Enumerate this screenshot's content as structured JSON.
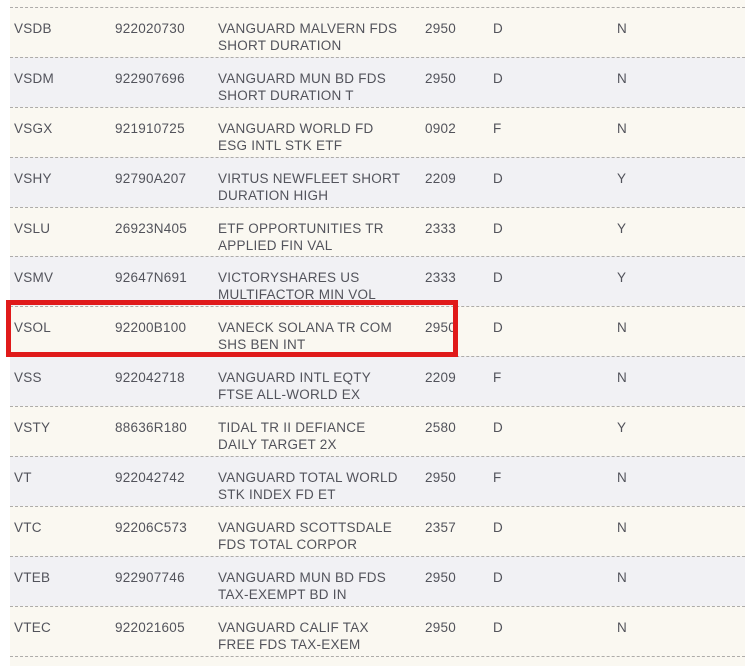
{
  "colors": {
    "highlight_red": "#e01a1a",
    "row_cream": "#faf8f1",
    "row_gray": "#f1f1f4",
    "text": "#52535b",
    "dashed_border": "#aeaca9"
  },
  "highlight": {
    "symbol": "VSOL"
  },
  "table": {
    "rows": [
      {
        "symbol": "VSDB",
        "cusip": "922020730",
        "name": "VANGUARD MALVERN FDS SHORT DURATION",
        "code": "2950",
        "flag": "D",
        "indicator": "N"
      },
      {
        "symbol": "VSDM",
        "cusip": "922907696",
        "name": "VANGUARD MUN BD FDS SHORT DURATION T",
        "code": "2950",
        "flag": "D",
        "indicator": "N"
      },
      {
        "symbol": "VSGX",
        "cusip": "921910725",
        "name": "VANGUARD WORLD FD ESG INTL STK ETF",
        "code": "0902",
        "flag": "F",
        "indicator": "N"
      },
      {
        "symbol": "VSHY",
        "cusip": "92790A207",
        "name": "VIRTUS NEWFLEET SHORT DURATION HIGH",
        "code": "2209",
        "flag": "D",
        "indicator": "Y"
      },
      {
        "symbol": "VSLU",
        "cusip": "26923N405",
        "name": "ETF OPPORTUNITIES TR APPLIED FIN VAL",
        "code": "2333",
        "flag": "D",
        "indicator": "Y"
      },
      {
        "symbol": "VSMV",
        "cusip": "92647N691",
        "name": "VICTORYSHARES US MULTIFACTOR MIN VOL",
        "code": "2333",
        "flag": "D",
        "indicator": "Y"
      },
      {
        "symbol": "VSOL",
        "cusip": "92200B100",
        "name": "VANECK SOLANA TR COM SHS BEN INT",
        "code": "2950",
        "flag": "D",
        "indicator": "N"
      },
      {
        "symbol": "VSS",
        "cusip": "922042718",
        "name": "VANGUARD INTL EQTY FTSE ALL-WORLD EX",
        "code": "2209",
        "flag": "F",
        "indicator": "N"
      },
      {
        "symbol": "VSTY",
        "cusip": "88636R180",
        "name": "TIDAL TR II DEFIANCE DAILY TARGET 2X",
        "code": "2580",
        "flag": "D",
        "indicator": "Y"
      },
      {
        "symbol": "VT",
        "cusip": "922042742",
        "name": "VANGUARD TOTAL WORLD STK INDEX FD ET",
        "code": "2950",
        "flag": "F",
        "indicator": "N"
      },
      {
        "symbol": "VTC",
        "cusip": "92206C573",
        "name": "VANGUARD SCOTTSDALE FDS TOTAL CORPOR",
        "code": "2357",
        "flag": "D",
        "indicator": "N"
      },
      {
        "symbol": "VTEB",
        "cusip": "922907746",
        "name": "VANGUARD MUN BD FDS TAX-EXEMPT BD IN",
        "code": "2950",
        "flag": "D",
        "indicator": "N"
      },
      {
        "symbol": "VTEC",
        "cusip": "922021605",
        "name": "VANGUARD CALIF TAX FREE FDS TAX-EXEM",
        "code": "2950",
        "flag": "D",
        "indicator": "N"
      }
    ]
  }
}
